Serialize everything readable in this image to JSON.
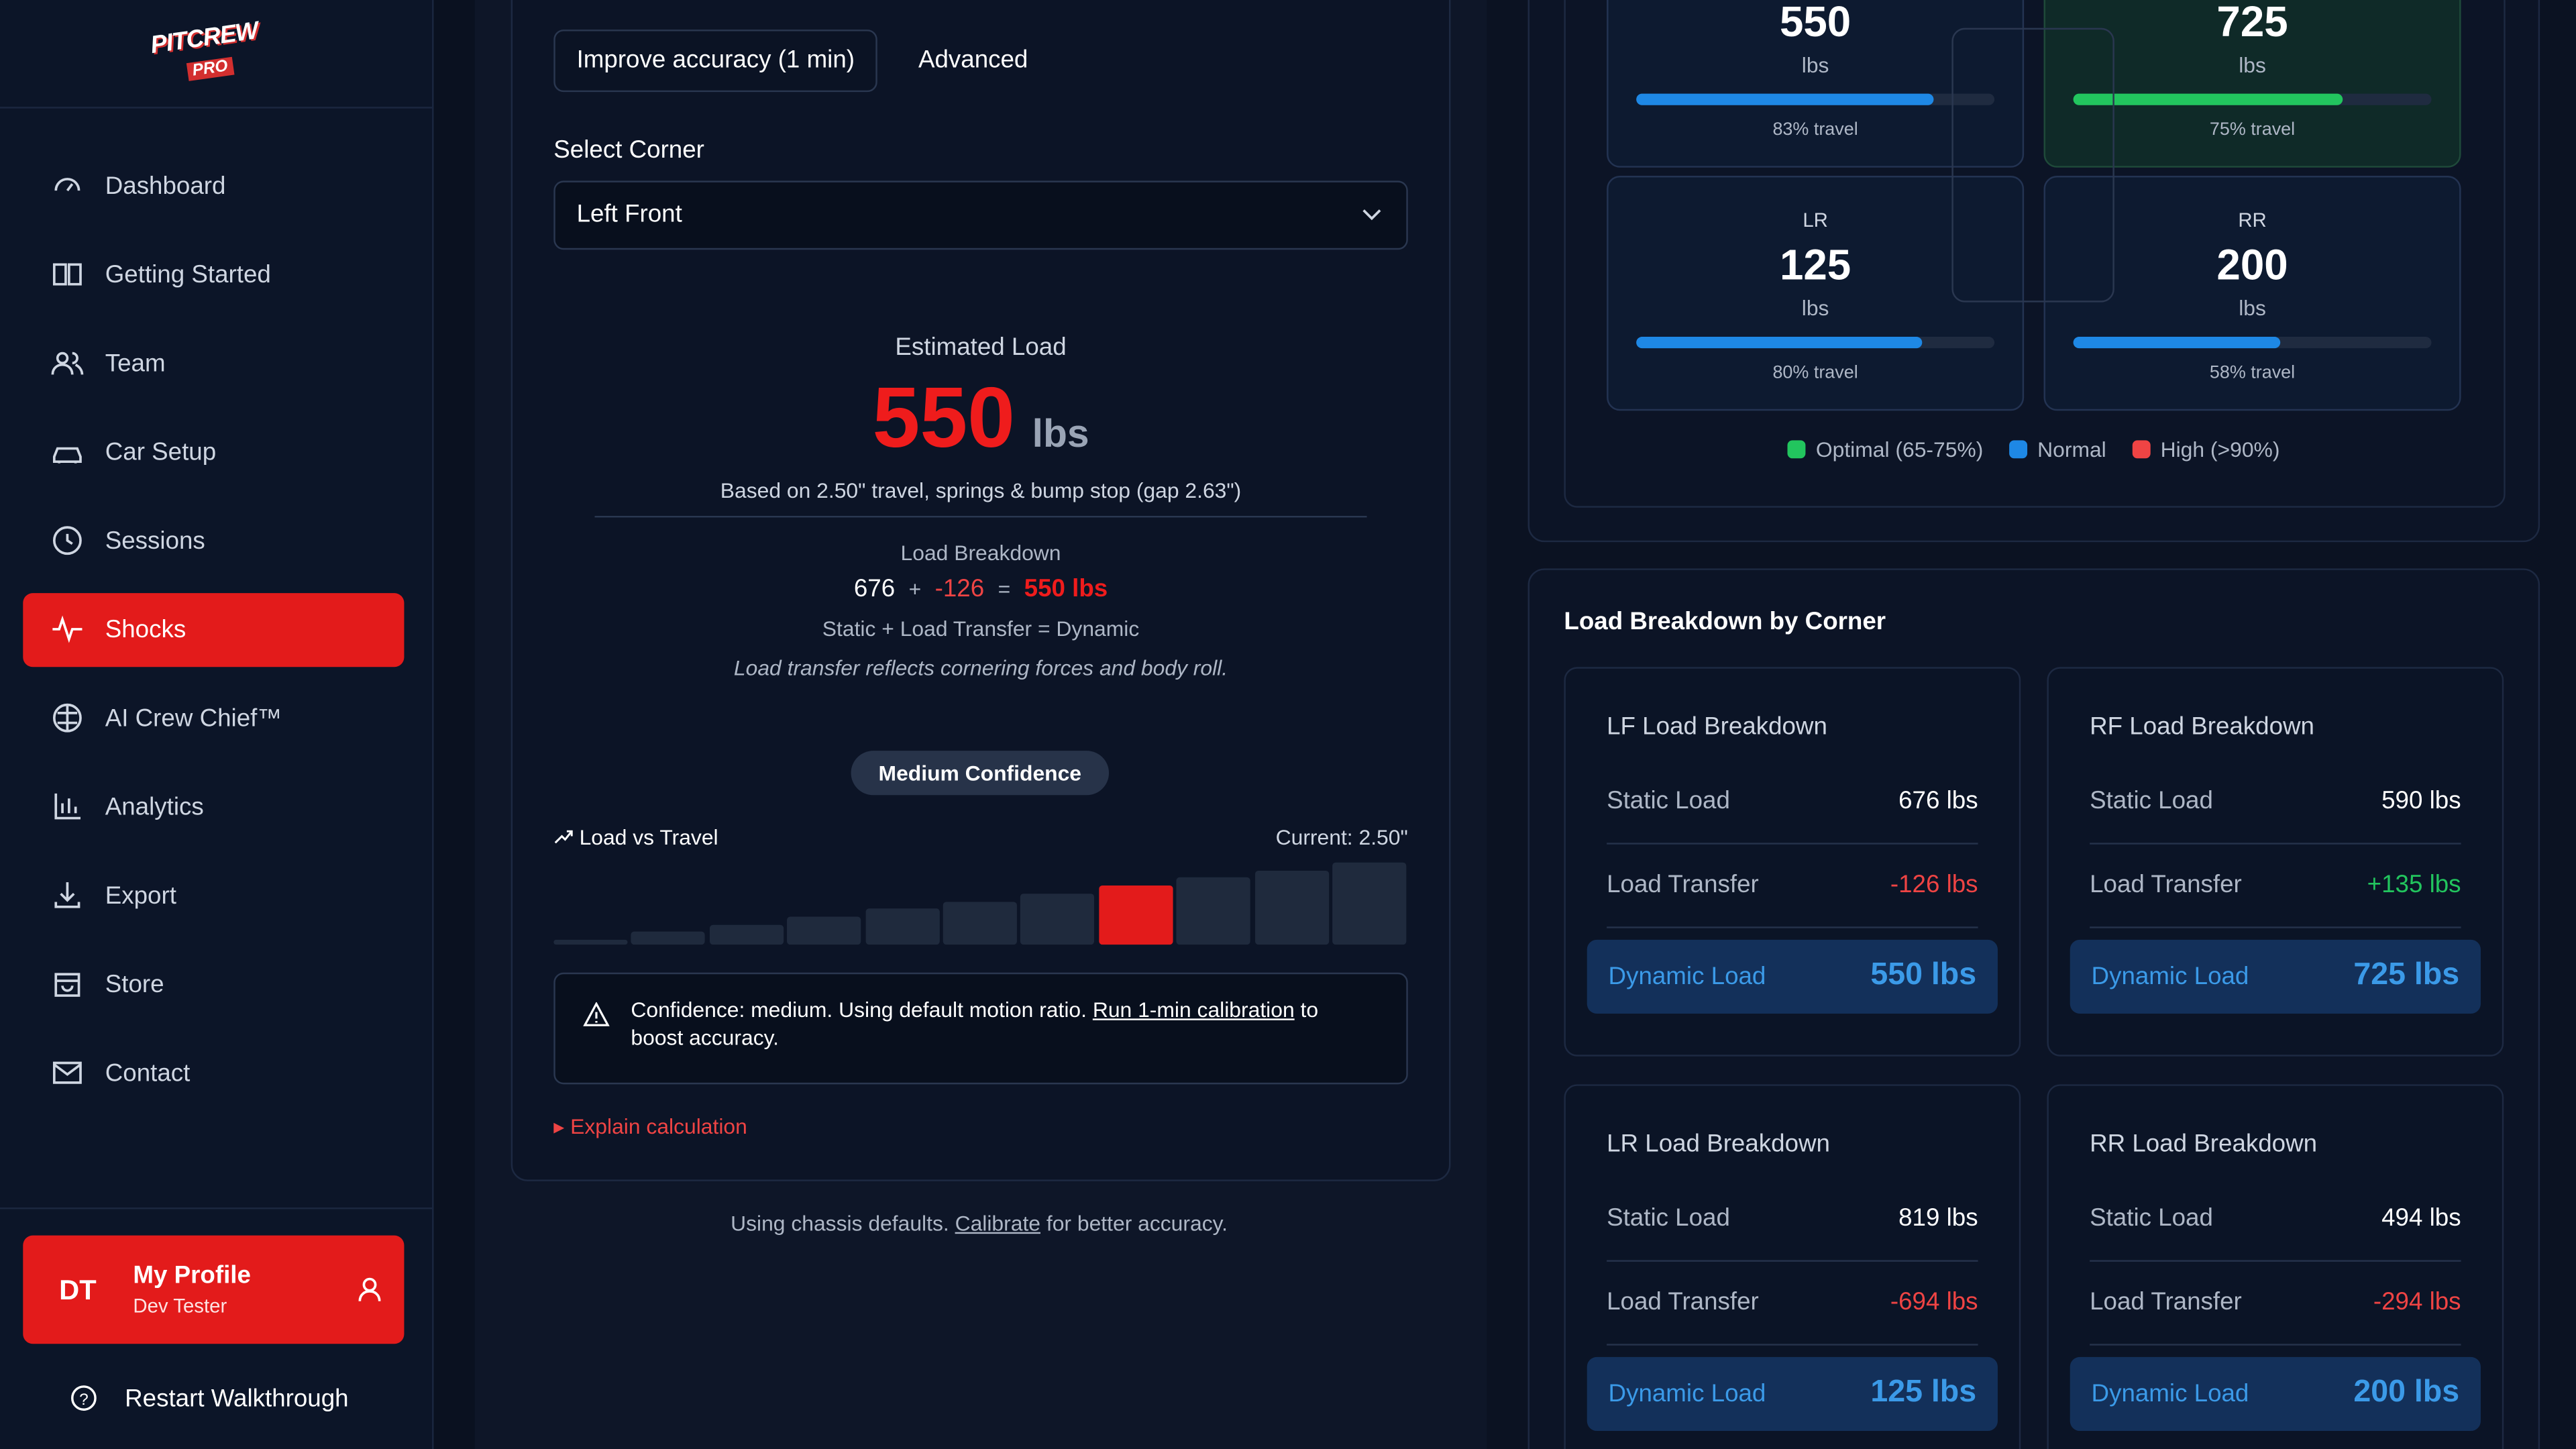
{
  "sidebar": {
    "logo": {
      "top": "PITCREW",
      "bottom": "PRO"
    },
    "nav": [
      "Dashboard",
      "Getting Started",
      "Team",
      "Car Setup",
      "Sessions",
      "Shocks",
      "AI Crew Chief™",
      "Analytics",
      "Export",
      "Store",
      "Contact"
    ],
    "profile": {
      "initials": "DT",
      "name": "My Profile",
      "role": "Dev Tester"
    },
    "restart": "Restart Walkthrough"
  },
  "calculator": {
    "tabs": [
      "Improve accuracy (1 min)",
      "Advanced"
    ],
    "select_label": "Select Corner",
    "select_value": "Left Front",
    "estimate": {
      "label": "Estimated Load",
      "value": 550,
      "unit": "lbs",
      "basis": "Based on 2.50\" travel, springs & bump stop (gap 2.63\")"
    },
    "breakdown": {
      "title": "Load Breakdown",
      "static": "676",
      "plus": "+",
      "transfer": "-126",
      "equals": "=",
      "dynamic": "550 lbs",
      "caption": "Static + Load Transfer = Dynamic",
      "note": "Load transfer reflects cornering forces and body roll."
    },
    "confidence": "Medium Confidence",
    "chart": {
      "title": "Load vs Travel",
      "current": "Current: 2.50\""
    },
    "alert": {
      "text": "Confidence: medium. Using default motion ratio.",
      "link": "Run 1-min calibration",
      "tail": "to boost accuracy."
    },
    "explain": "Explain calculation",
    "footer": {
      "text": "Using chassis defaults.",
      "link": "Calibrate",
      "tail": "for better accuracy."
    }
  },
  "corners": [
    {
      "value": 550,
      "unit": "lbs",
      "travel": 83,
      "travel_label": "83% travel",
      "color": "#1e88e5"
    },
    {
      "value": 725,
      "unit": "lbs",
      "travel": 75,
      "travel_label": "75% travel",
      "color": "#22c55e"
    },
    {
      "name": "LR",
      "value": 125,
      "unit": "lbs",
      "travel": 80,
      "travel_label": "80% travel",
      "color": "#1e88e5"
    },
    {
      "name": "RR",
      "value": 200,
      "unit": "lbs",
      "travel": 58,
      "travel_label": "58% travel",
      "color": "#1e88e5"
    }
  ],
  "legend": [
    {
      "label": "Optimal (65-75%)",
      "color": "#22c55e"
    },
    {
      "label": "Normal",
      "color": "#1e88e5"
    },
    {
      "label": "High (>90%)",
      "color": "#ef4444"
    }
  ],
  "breakdown_by_corner": {
    "title": "Load Breakdown by Corner",
    "cards": [
      {
        "title": "LF Load Breakdown",
        "rows": [
          [
            "Static Load",
            "676 lbs"
          ],
          [
            "Load Transfer",
            "-126 lbs"
          ]
        ],
        "dynamic": [
          "Dynamic Load",
          "550 lbs"
        ]
      },
      {
        "title": "RF Load Breakdown",
        "rows": [
          [
            "Static Load",
            "590 lbs"
          ],
          [
            "Load Transfer",
            "+135 lbs"
          ]
        ],
        "dynamic": [
          "Dynamic Load",
          "725 lbs"
        ]
      },
      {
        "title": "LR Load Breakdown",
        "rows": [
          [
            "Static Load",
            "819 lbs"
          ],
          [
            "Load Transfer",
            "-694 lbs"
          ]
        ],
        "dynamic": [
          "Dynamic Load",
          "125 lbs"
        ]
      },
      {
        "title": "RR Load Breakdown",
        "rows": [
          [
            "Static Load",
            "494 lbs"
          ],
          [
            "Load Transfer",
            "-294 lbs"
          ]
        ],
        "dynamic": [
          "Dynamic Load",
          "200 lbs"
        ]
      }
    ]
  }
}
